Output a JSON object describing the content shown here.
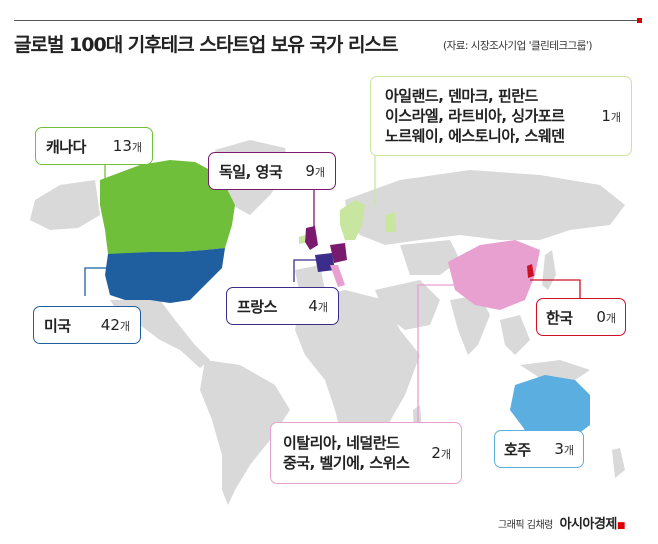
{
  "title": "글로벌 100대 기후테크 스타트업 보유 국가 리스트",
  "source": "(자료: 시장조사기업 '클린테크그룹')",
  "unit": "개",
  "countries": {
    "canada": {
      "name": "캐나다",
      "count": "13",
      "color": "#6fbf3b"
    },
    "usa": {
      "name": "미국",
      "count": "42",
      "color": "#1f5fa0"
    },
    "germany_uk": {
      "name": "독일, 영국",
      "count": "9",
      "color": "#7a1a6e"
    },
    "france": {
      "name": "프랑스",
      "count": "4",
      "color": "#3c2d8c"
    },
    "nordic": {
      "lines": [
        "아일랜드, 덴마크, 핀란드",
        "이스라엘, 라트비아, 싱가포르",
        "노르웨이, 에스토니아, 스웨덴"
      ],
      "count": "1",
      "color": "#c8e6a0"
    },
    "italy_group": {
      "lines": [
        "이탈리아, 네덜란드",
        "중국, 벨기에, 스위스"
      ],
      "count": "2",
      "color": "#e8a0d0"
    },
    "korea": {
      "name": "한국",
      "count": "0",
      "color": "#cc1122"
    },
    "australia": {
      "name": "호주",
      "count": "3",
      "color": "#5aaee0"
    }
  },
  "credit": {
    "label": "그래픽 김채령",
    "brand": "아시아경제"
  }
}
